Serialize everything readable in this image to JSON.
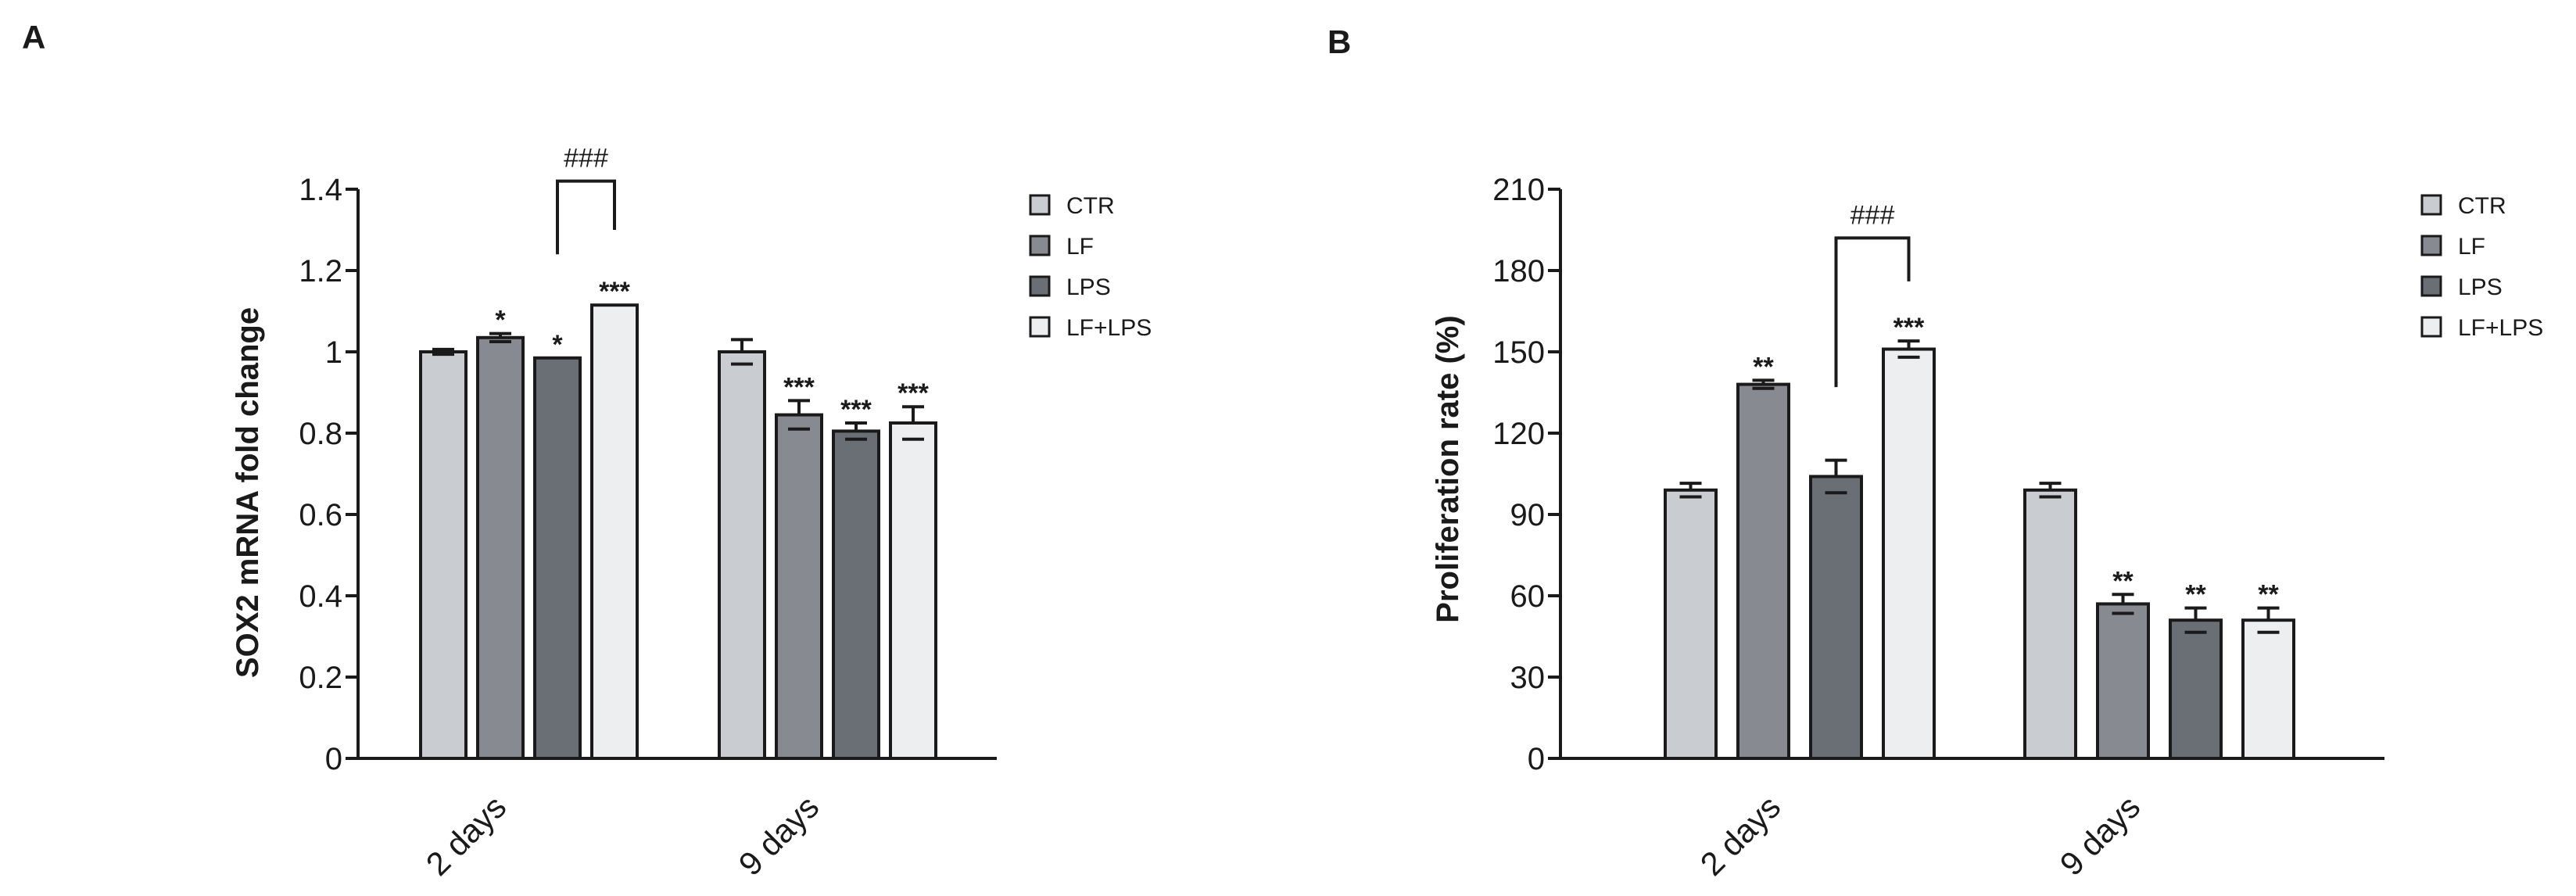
{
  "chart_data": [
    {
      "type": "bar",
      "panel": "A",
      "ylabel": "SOX2 mRNA fold change",
      "xlabel": "",
      "ylim": [
        0,
        1.4
      ],
      "yticks": [
        0,
        0.2,
        0.4,
        0.6,
        0.8,
        1,
        1.2,
        1.4
      ],
      "ytick_labels": [
        "0",
        "0.2",
        "0.4",
        "0.6",
        "0.8",
        "1",
        "1.2",
        "1.4"
      ],
      "categories": [
        "2 days",
        "9 days"
      ],
      "series": [
        {
          "name": "CTR",
          "color": "#c9cdd1",
          "values": [
            1.0,
            1.0
          ],
          "errors": [
            0.006,
            0.03
          ],
          "labels": [
            "",
            ""
          ]
        },
        {
          "name": "LF",
          "color": "#878b91",
          "values": [
            1.035,
            0.845
          ],
          "errors": [
            0.01,
            0.035
          ],
          "labels": [
            "*",
            "***"
          ]
        },
        {
          "name": "LPS",
          "color": "#6a6f75",
          "values": [
            0.985,
            0.805
          ],
          "errors": [
            0.0,
            0.02
          ],
          "labels": [
            "*",
            "***"
          ]
        },
        {
          "name": "LF+LPS",
          "color": "#eceef0",
          "values": [
            1.115,
            0.825
          ],
          "errors": [
            0.0,
            0.04
          ],
          "labels": [
            "***",
            "***"
          ]
        }
      ],
      "bracket": {
        "category": 0,
        "from_series": 2,
        "to_series": 3,
        "label": "###",
        "y": 1.42,
        "drop_to": [
          1.24,
          1.3
        ]
      },
      "legend_position": "right"
    },
    {
      "type": "bar",
      "panel": "B",
      "ylabel": "Proliferation rate (%)",
      "xlabel": "",
      "ylim": [
        0,
        210
      ],
      "yticks": [
        0,
        30,
        60,
        90,
        120,
        150,
        180,
        210
      ],
      "ytick_labels": [
        "0",
        "30",
        "60",
        "90",
        "120",
        "150",
        "180",
        "210"
      ],
      "categories": [
        "2 days",
        "9 days"
      ],
      "series": [
        {
          "name": "CTR",
          "color": "#c9cdd1",
          "values": [
            99,
            99
          ],
          "errors": [
            2.5,
            2.5
          ],
          "labels": [
            "",
            ""
          ]
        },
        {
          "name": "LF",
          "color": "#878b91",
          "values": [
            138,
            57
          ],
          "errors": [
            1.5,
            3.5
          ],
          "labels": [
            "**",
            "**"
          ]
        },
        {
          "name": "LPS",
          "color": "#6a6f75",
          "values": [
            104,
            51
          ],
          "errors": [
            6,
            4.5
          ],
          "labels": [
            "",
            "**"
          ]
        },
        {
          "name": "LF+LPS",
          "color": "#eceef0",
          "values": [
            151,
            51
          ],
          "errors": [
            3,
            4.5
          ],
          "labels": [
            "***",
            "**"
          ]
        }
      ],
      "bracket": {
        "category": 0,
        "from_series": 2,
        "to_series": 3,
        "label": "###",
        "y": 192,
        "drop_to": [
          137,
          176
        ]
      },
      "legend_position": "right"
    }
  ]
}
